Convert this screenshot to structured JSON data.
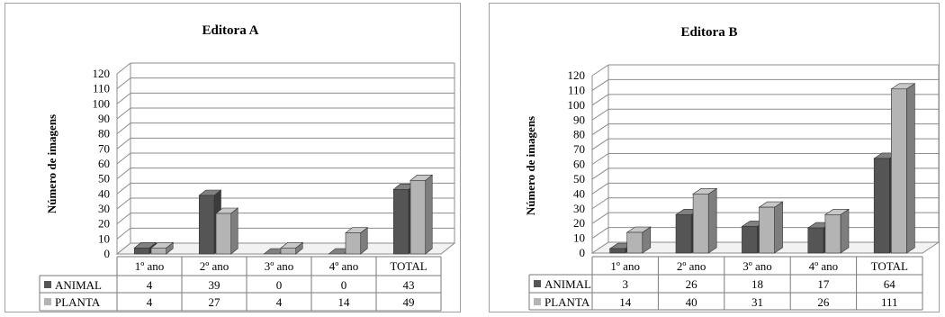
{
  "chart_data": [
    {
      "type": "bar",
      "title": "Editora A",
      "ylabel": "Número de imagens",
      "xlabel": "",
      "ylim": [
        0,
        120
      ],
      "yticks": [
        0,
        10,
        20,
        30,
        40,
        50,
        60,
        70,
        80,
        90,
        100,
        110,
        120
      ],
      "categories": [
        "1º ano",
        "2º ano",
        "3º ano",
        "4º ano",
        "TOTAL"
      ],
      "series": [
        {
          "name": "ANIMAL",
          "color": "#555555",
          "values": [
            4,
            39,
            0,
            0,
            43
          ]
        },
        {
          "name": "PLANTA",
          "color": "#b4b4b4",
          "values": [
            4,
            27,
            4,
            14,
            49
          ]
        }
      ],
      "legend": "data-table"
    },
    {
      "type": "bar",
      "title": "Editora B",
      "ylabel": "Número de imagens",
      "xlabel": "",
      "ylim": [
        0,
        120
      ],
      "yticks": [
        0,
        10,
        20,
        30,
        40,
        50,
        60,
        70,
        80,
        90,
        100,
        110,
        120
      ],
      "categories": [
        "1º ano",
        "2º ano",
        "3º ano",
        "4º ano",
        "TOTAL"
      ],
      "series": [
        {
          "name": "ANIMAL",
          "color": "#555555",
          "values": [
            3,
            26,
            18,
            17,
            64
          ]
        },
        {
          "name": "PLANTA",
          "color": "#b4b4b4",
          "values": [
            14,
            40,
            31,
            26,
            111
          ]
        }
      ],
      "legend": "data-table"
    }
  ]
}
